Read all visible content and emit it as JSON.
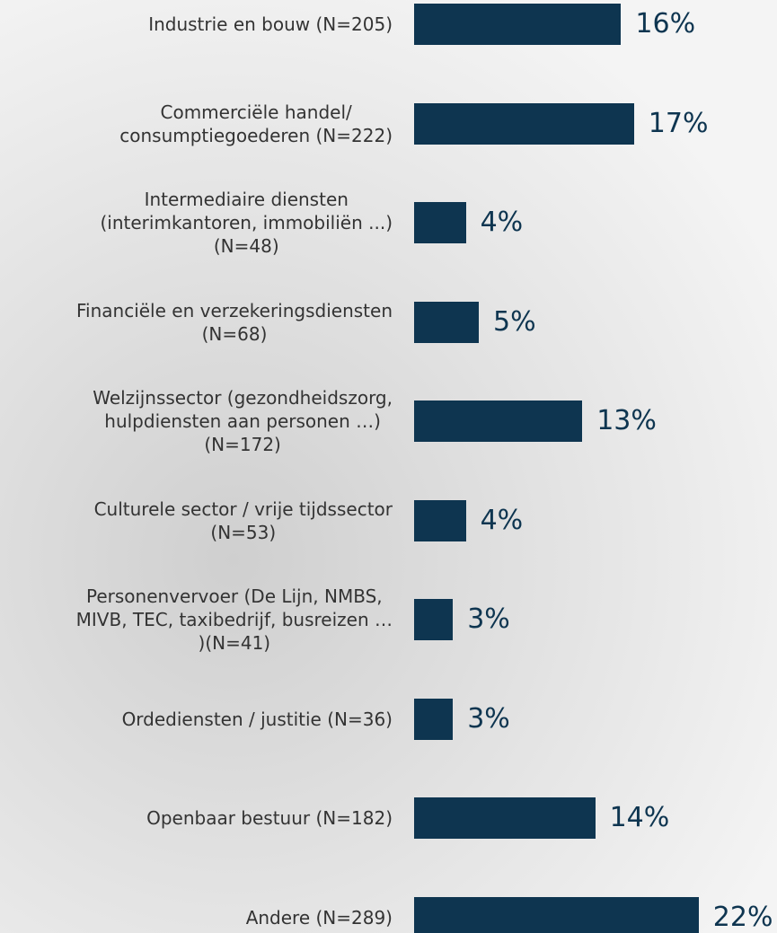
{
  "chart_data": {
    "type": "bar",
    "orientation": "horizontal",
    "color": "#0e3550",
    "categories": [
      "Industrie en bouw (N=205)",
      "Commerciële handel/\nconsumptiegoederen (N=222)",
      "Intermediaire diensten\n(interimkantoren, immobiliën ...)\n(N=48)",
      "Financiële en verzekeringsdiensten\n(N=68)",
      "Welzijnssector (gezondheidszorg,\nhulpdiensten aan personen …)\n(N=172)",
      "Culturele sector / vrije tijdssector\n(N=53)",
      "Personenvervoer (De Lijn, NMBS,\nMIVB, TEC, taxibedrijf, busreizen …\n)(N=41)",
      "Ordediensten / justitie (N=36)",
      "Openbaar bestuur (N=182)",
      "Andere (N=289)"
    ],
    "values": [
      16,
      17,
      4,
      5,
      13,
      4,
      3,
      3,
      14,
      22
    ],
    "value_labels": [
      "16%",
      "17%",
      "4%",
      "5%",
      "13%",
      "4%",
      "3%",
      "3%",
      "14%",
      "22%"
    ]
  }
}
